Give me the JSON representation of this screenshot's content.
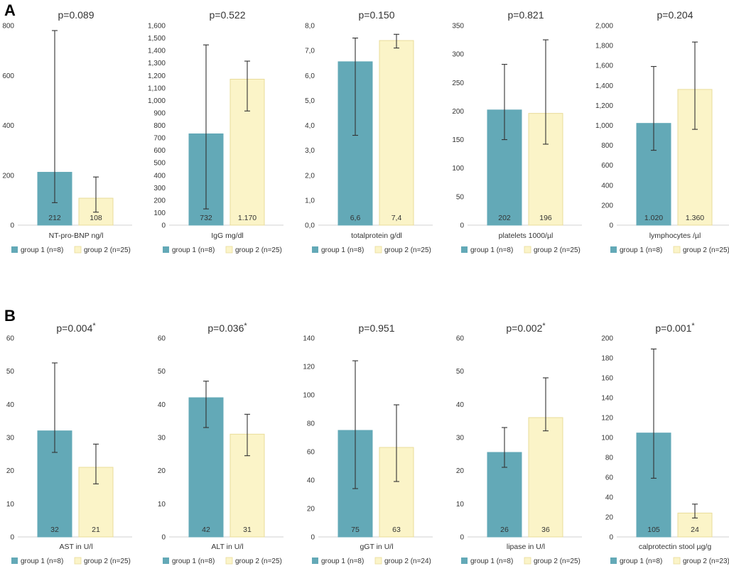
{
  "panels": [
    {
      "label": "A",
      "legend": [
        "group 1 (n=8)",
        "group 2 (n=25)"
      ]
    },
    {
      "label": "B"
    }
  ],
  "colors": {
    "group1": "#63a9b7",
    "group2": "#fbf4c8",
    "group2_edge": "#e9dc9a",
    "axis": "#d0d0d0",
    "text": "#333333",
    "error": "#333333"
  },
  "chart_data": [
    {
      "type": "bar",
      "title": "p=0.089",
      "xlabel": "NT-pro-BNP ng/l",
      "ylim": [
        0,
        800
      ],
      "yticks": [
        "0",
        "200",
        "400",
        "600",
        "800"
      ],
      "series": [
        {
          "name": "group 1 (n=8)",
          "values": [
            212
          ],
          "labels": [
            "212"
          ],
          "error": [
            [
              90,
              780
            ]
          ]
        },
        {
          "name": "group 2 (n=25)",
          "values": [
            108
          ],
          "labels": [
            "108"
          ],
          "error": [
            [
              52,
              193
            ]
          ]
        }
      ],
      "legend": [
        "group 1 (n=8)",
        "group 2 (n=25)"
      ]
    },
    {
      "type": "bar",
      "title": "p=0.522",
      "xlabel": "IgG mg/dl",
      "ylim": [
        0,
        1600
      ],
      "yticks": [
        "0",
        "100",
        "200",
        "300",
        "400",
        "500",
        "600",
        "700",
        "800",
        "900",
        "1,000",
        "1,100",
        "1,200",
        "1,300",
        "1,400",
        "1,500",
        "1,600"
      ],
      "series": [
        {
          "name": "group 1 (n=8)",
          "values": [
            732
          ],
          "labels": [
            "732"
          ],
          "error": [
            [
              130,
              1445
            ]
          ]
        },
        {
          "name": "group 2 (n=25)",
          "values": [
            1170
          ],
          "labels": [
            "1.170"
          ],
          "error": [
            [
              915,
              1315
            ]
          ]
        }
      ],
      "legend": [
        "group 1 (n=8)",
        "group 2 (n=25)"
      ]
    },
    {
      "type": "bar",
      "title": "p=0.150",
      "xlabel": "totalprotein g/dl",
      "ylim": [
        0,
        8
      ],
      "yticks": [
        "0,0",
        "1,0",
        "2,0",
        "3,0",
        "4,0",
        "5,0",
        "6,0",
        "7,0",
        "8,0"
      ],
      "series": [
        {
          "name": "group 1 (n=8)",
          "values": [
            6.55
          ],
          "labels": [
            "6,6"
          ],
          "error": [
            [
              3.6,
              7.5
            ]
          ]
        },
        {
          "name": "group 2 (n=25)",
          "values": [
            7.4
          ],
          "labels": [
            "7,4"
          ],
          "error": [
            [
              7.1,
              7.65
            ]
          ]
        }
      ],
      "legend": [
        "group 1 (n=8)",
        "group 2 (n=25)"
      ]
    },
    {
      "type": "bar",
      "title": "p=0.821",
      "xlabel": "platelets 1000/µl",
      "ylim": [
        0,
        350
      ],
      "yticks": [
        "0",
        "50",
        "100",
        "150",
        "200",
        "250",
        "300",
        "350"
      ],
      "series": [
        {
          "name": "group 1 (n=8)",
          "values": [
            202
          ],
          "labels": [
            "202"
          ],
          "error": [
            [
              150,
              282
            ]
          ]
        },
        {
          "name": "group 2 (n=25)",
          "values": [
            196
          ],
          "labels": [
            "196"
          ],
          "error": [
            [
              142,
              325
            ]
          ]
        }
      ],
      "legend": [
        "group 1 (n=8)",
        "group 2 (n=25)"
      ]
    },
    {
      "type": "bar",
      "title": "p=0.204",
      "xlabel": "lymphocytes /µl",
      "ylim": [
        0,
        2000
      ],
      "yticks": [
        "0",
        "200",
        "400",
        "600",
        "800",
        "1,000",
        "1,200",
        "1,400",
        "1,600",
        "1,800",
        "2,000"
      ],
      "series": [
        {
          "name": "group 1 (n=8)",
          "values": [
            1020
          ],
          "labels": [
            "1.020"
          ],
          "error": [
            [
              750,
              1590
            ]
          ]
        },
        {
          "name": "group 2 (n=25)",
          "values": [
            1360
          ],
          "labels": [
            "1.360"
          ],
          "error": [
            [
              960,
              1835
            ]
          ]
        }
      ],
      "legend": [
        "group 1 (n=8)",
        "group 2 (n=25)"
      ]
    },
    {
      "type": "bar",
      "title": "p=0.004",
      "title_mark": "*",
      "xlabel": "AST in U/l",
      "ylim": [
        0,
        60
      ],
      "yticks": [
        "0",
        "10",
        "20",
        "30",
        "40",
        "50",
        "60"
      ],
      "series": [
        {
          "name": "group 1 (n=8)",
          "values": [
            32
          ],
          "labels": [
            "32"
          ],
          "error": [
            [
              25.5,
              52.5
            ]
          ]
        },
        {
          "name": "group 2 (n=25)",
          "values": [
            21
          ],
          "labels": [
            "21"
          ],
          "error": [
            [
              16,
              28
            ]
          ]
        }
      ],
      "legend": [
        "group 1 (n=8)",
        "group 2 (n=25)"
      ]
    },
    {
      "type": "bar",
      "title": "p=0.036",
      "title_mark": "*",
      "xlabel": "ALT in U/l",
      "ylim": [
        0,
        60
      ],
      "yticks": [
        "0",
        "10",
        "20",
        "30",
        "40",
        "50",
        "60"
      ],
      "series": [
        {
          "name": "group 1 (n=8)",
          "values": [
            42
          ],
          "labels": [
            "42"
          ],
          "error": [
            [
              33,
              47
            ]
          ]
        },
        {
          "name": "group 2 (n=25)",
          "values": [
            31
          ],
          "labels": [
            "31"
          ],
          "error": [
            [
              24.5,
              37
            ]
          ]
        }
      ],
      "legend": [
        "group 1 (n=8)",
        "group 2 (n=25)"
      ]
    },
    {
      "type": "bar",
      "title": "p=0.951",
      "xlabel": "gGT in U/l",
      "ylim": [
        0,
        140
      ],
      "yticks": [
        "0",
        "20",
        "40",
        "60",
        "80",
        "100",
        "120",
        "140"
      ],
      "series": [
        {
          "name": "group 1 (n=8)",
          "values": [
            75
          ],
          "labels": [
            "75"
          ],
          "error": [
            [
              34,
              124
            ]
          ]
        },
        {
          "name": "group 2 (n=24)",
          "values": [
            63
          ],
          "labels": [
            "63"
          ],
          "error": [
            [
              39,
              93
            ]
          ]
        }
      ],
      "legend": [
        "group 1 (n=8)",
        "group 2 (n=24)"
      ]
    },
    {
      "type": "bar",
      "title": "p=0.002",
      "title_mark": "*",
      "xlabel": "lipase in U/l",
      "ylim": [
        0,
        60
      ],
      "yticks": [
        "0",
        "10",
        "20",
        "30",
        "40",
        "50",
        "60"
      ],
      "series": [
        {
          "name": "group 1 (n=8)",
          "values": [
            25.5
          ],
          "labels": [
            "26"
          ],
          "error": [
            [
              21,
              33
            ]
          ]
        },
        {
          "name": "group 2 (n=25)",
          "values": [
            36
          ],
          "labels": [
            "36"
          ],
          "error": [
            [
              32,
              48
            ]
          ]
        }
      ],
      "legend": [
        "group 1 (n=8)",
        "group 2 (n=25)"
      ]
    },
    {
      "type": "bar",
      "title": "p=0.001",
      "title_mark": "*",
      "xlabel": "calprotectin stool µg/g",
      "ylim": [
        0,
        200
      ],
      "yticks": [
        "0",
        "20",
        "40",
        "60",
        "80",
        "100",
        "120",
        "140",
        "160",
        "180",
        "200"
      ],
      "series": [
        {
          "name": "group 1 (n=8)",
          "values": [
            104.5
          ],
          "labels": [
            "105"
          ],
          "error": [
            [
              59,
              189
            ]
          ]
        },
        {
          "name": "group 2 (n=23)",
          "values": [
            24
          ],
          "labels": [
            "24"
          ],
          "error": [
            [
              19,
              33
            ]
          ]
        }
      ],
      "legend": [
        "group 1 (n=8)",
        "group 2 (n=23)"
      ]
    }
  ]
}
